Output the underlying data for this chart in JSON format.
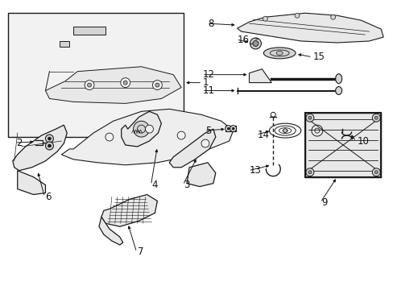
{
  "bg_color": "#ffffff",
  "fig_width": 4.89,
  "fig_height": 3.6,
  "dpi": 100,
  "font_size": 8.5,
  "line_color": "#1a1a1a",
  "fill_light": "#e8e8e8",
  "fill_mid": "#d4d4d4",
  "fill_dark": "#c0c0c0",
  "fill_box": "#f0f0f0"
}
